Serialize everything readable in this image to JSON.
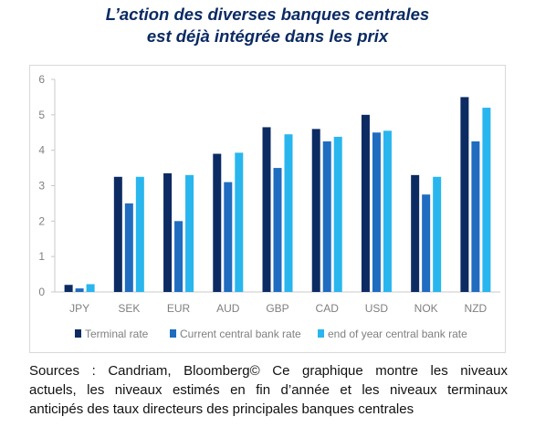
{
  "title_line1": "L’action des diverses banques centrales",
  "title_line2": "est déjà intégrée dans les prix",
  "caption_lines": [
    "Sources : Candriam, Bloomberg© Ce graphique montre les niveaux",
    "actuels, les niveaux estimés en fin d’année et les niveaux terminaux",
    "anticipés des taux directeurs des principales banques centrales"
  ],
  "chart_data": {
    "type": "bar",
    "categories": [
      "JPY",
      "SEK",
      "EUR",
      "AUD",
      "GBP",
      "CAD",
      "USD",
      "NOK",
      "NZD"
    ],
    "series": [
      {
        "name": "Terminal rate",
        "color": "#0d2b63",
        "values": [
          0.2,
          3.25,
          3.35,
          3.9,
          4.65,
          4.6,
          5.0,
          3.3,
          5.5
        ]
      },
      {
        "name": "Current central bank rate",
        "color": "#1f6cc0",
        "values": [
          0.1,
          2.5,
          2.0,
          3.1,
          3.5,
          4.25,
          4.5,
          2.75,
          4.25
        ]
      },
      {
        "name": "end of year central bank rate",
        "color": "#29b6ee",
        "values": [
          0.22,
          3.25,
          3.3,
          3.93,
          4.45,
          4.38,
          4.55,
          3.25,
          5.2
        ]
      }
    ],
    "ylim": [
      0,
      6
    ],
    "yticks": [
      0,
      1,
      2,
      3,
      4,
      5,
      6
    ],
    "grid": false,
    "legend_position": "bottom"
  }
}
